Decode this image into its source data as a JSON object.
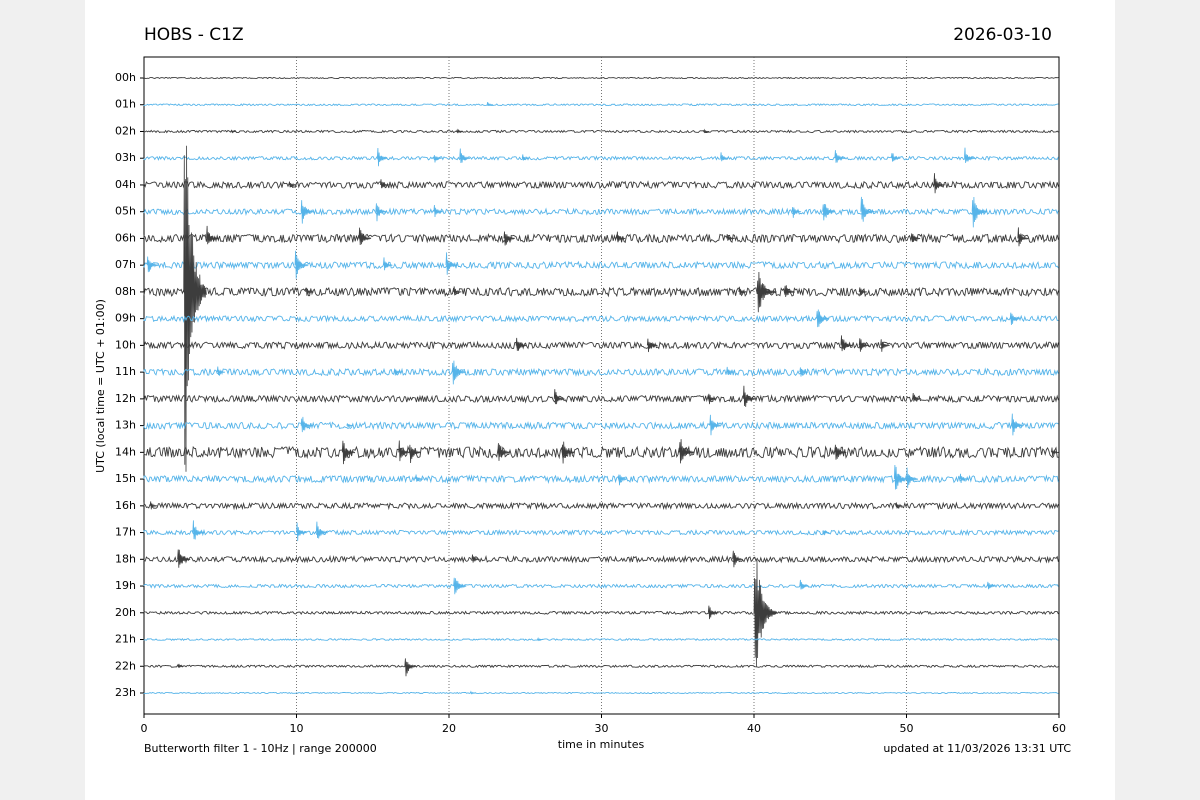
{
  "chart_data": {
    "type": "helicorder",
    "title": "HOBS - C1Z",
    "date": "2026-03-10",
    "ylabel": "UTC (local time = UTC + 01:00)",
    "xlabel": "time in minutes",
    "filter_note": "Butterworth filter 1 - 10Hz  |  range 200000",
    "updated_note": "updated at 11/03/2026 13:31 UTC",
    "xlim": [
      0,
      60
    ],
    "xticks": [
      0,
      10,
      20,
      30,
      40,
      50,
      60
    ],
    "grid": "dotted",
    "colors": [
      "#3d3d3d",
      "#56b4e9"
    ],
    "rows": [
      {
        "label": "00h",
        "noise": 0.02,
        "events": []
      },
      {
        "label": "01h",
        "noise": 0.03,
        "events": [
          [
            22.5,
            0.15
          ]
        ]
      },
      {
        "label": "02h",
        "noise": 0.04,
        "events": [
          [
            5.7,
            0.1
          ],
          [
            20.5,
            0.15
          ],
          [
            36.7,
            0.1
          ]
        ]
      },
      {
        "label": "03h",
        "noise": 0.06,
        "events": [
          [
            15.3,
            0.5
          ],
          [
            19,
            0.3
          ],
          [
            20.7,
            0.5
          ],
          [
            24.8,
            0.2
          ],
          [
            37.8,
            0.3
          ],
          [
            45.3,
            0.5
          ],
          [
            49,
            0.4
          ],
          [
            53.8,
            0.5
          ]
        ]
      },
      {
        "label": "04h",
        "noise": 0.12,
        "events": [
          [
            9.5,
            0.3
          ],
          [
            15.5,
            0.35
          ],
          [
            51.8,
            0.55
          ]
        ]
      },
      {
        "label": "05h",
        "noise": 0.1,
        "events": [
          [
            10.3,
            0.7
          ],
          [
            15.2,
            0.55
          ],
          [
            19,
            0.4
          ],
          [
            42.5,
            0.4
          ],
          [
            44.5,
            0.7
          ],
          [
            47,
            0.8
          ],
          [
            54.3,
            0.9
          ]
        ]
      },
      {
        "label": "06h",
        "noise": 0.15,
        "events": [
          [
            4.1,
            0.6
          ],
          [
            14.1,
            0.65
          ],
          [
            23.6,
            0.55
          ],
          [
            31,
            0.35
          ],
          [
            38.2,
            0.3
          ],
          [
            50.3,
            0.4
          ],
          [
            57.3,
            0.55
          ]
        ]
      },
      {
        "label": "07h",
        "noise": 0.12,
        "events": [
          [
            0.2,
            0.6
          ],
          [
            9.9,
            0.75
          ],
          [
            15.7,
            0.4
          ],
          [
            19.8,
            0.6
          ]
        ]
      },
      {
        "label": "08h",
        "noise": 0.15,
        "events": [
          [
            2.6,
            11
          ],
          [
            10.6,
            0.3
          ],
          [
            20.3,
            0.3
          ],
          [
            39,
            0.3
          ],
          [
            40.2,
            1.2
          ],
          [
            42,
            0.5
          ],
          [
            46.9,
            0.3
          ]
        ]
      },
      {
        "label": "09h",
        "noise": 0.1,
        "events": [
          [
            44.1,
            0.7
          ],
          [
            56.8,
            0.5
          ]
        ]
      },
      {
        "label": "10h",
        "noise": 0.12,
        "events": [
          [
            24.4,
            0.5
          ],
          [
            33,
            0.5
          ],
          [
            45.7,
            0.6
          ],
          [
            46.9,
            0.5
          ],
          [
            48.3,
            0.4
          ]
        ]
      },
      {
        "label": "11h",
        "noise": 0.12,
        "events": [
          [
            4.8,
            0.3
          ],
          [
            16.4,
            0.3
          ],
          [
            20.2,
            0.8
          ],
          [
            38.2,
            0.3
          ],
          [
            43,
            0.35
          ]
        ]
      },
      {
        "label": "12h",
        "noise": 0.12,
        "events": [
          [
            26.9,
            0.5
          ],
          [
            37,
            0.35
          ],
          [
            39.3,
            0.65
          ],
          [
            50.4,
            0.35
          ]
        ]
      },
      {
        "label": "13h",
        "noise": 0.12,
        "events": [
          [
            10.3,
            0.6
          ],
          [
            13.3,
            0.2
          ],
          [
            37.1,
            0.6
          ],
          [
            56.9,
            0.65
          ]
        ]
      },
      {
        "label": "14h",
        "noise": 0.2,
        "events": [
          [
            13,
            0.7
          ],
          [
            16.7,
            0.6
          ],
          [
            17.4,
            0.6
          ],
          [
            23.2,
            0.65
          ],
          [
            27.4,
            0.7
          ],
          [
            35.1,
            0.9
          ],
          [
            45.3,
            0.6
          ],
          [
            59.5,
            0.3
          ]
        ]
      },
      {
        "label": "15h",
        "noise": 0.12,
        "events": [
          [
            17.8,
            0.3
          ],
          [
            31.1,
            0.4
          ],
          [
            49.2,
            0.8
          ],
          [
            50,
            0.6
          ],
          [
            53.5,
            0.3
          ]
        ]
      },
      {
        "label": "16h",
        "noise": 0.1,
        "events": [
          [
            0.4,
            0.25
          ],
          [
            49.3,
            0.2
          ]
        ]
      },
      {
        "label": "17h",
        "noise": 0.08,
        "events": [
          [
            3.2,
            0.6
          ],
          [
            10,
            0.5
          ],
          [
            11.3,
            0.6
          ],
          [
            44.5,
            0.2
          ]
        ]
      },
      {
        "label": "18h",
        "noise": 0.1,
        "events": [
          [
            2.2,
            0.7
          ],
          [
            21.5,
            0.3
          ],
          [
            38.6,
            0.5
          ]
        ]
      },
      {
        "label": "19h",
        "noise": 0.06,
        "events": [
          [
            20.3,
            0.7
          ],
          [
            43,
            0.4
          ],
          [
            55.3,
            0.3
          ]
        ]
      },
      {
        "label": "20h",
        "noise": 0.05,
        "events": [
          [
            37,
            0.5
          ],
          [
            40,
            3.4
          ]
        ]
      },
      {
        "label": "21h",
        "noise": 0.03,
        "events": [
          [
            25.8,
            0.1
          ]
        ]
      },
      {
        "label": "22h",
        "noise": 0.04,
        "events": [
          [
            2.2,
            0.15
          ],
          [
            17.1,
            0.6
          ]
        ]
      },
      {
        "label": "23h",
        "noise": 0.02,
        "events": [
          [
            21.4,
            0.1
          ]
        ]
      }
    ]
  }
}
